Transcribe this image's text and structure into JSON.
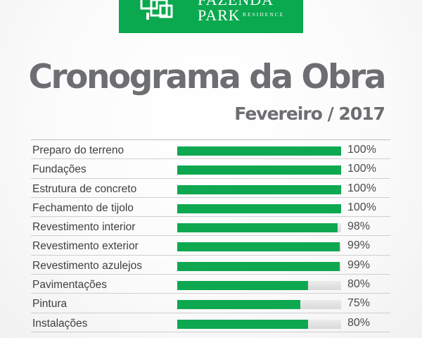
{
  "logo": {
    "line1": "FAZENDA",
    "line2": "PARK",
    "sub": "RESIDENCE",
    "color": "#0aa84f"
  },
  "title": "Cronograma da Obra",
  "subtitle": "Fevereiro / 2017",
  "colors": {
    "bar_fill": "#0ea851",
    "bar_track": "#e2e2e2",
    "title": "#6d6e71"
  },
  "tasks": [
    {
      "label": "Preparo do terreno",
      "percent_text": "100%",
      "progress": 100
    },
    {
      "label": "Fundações",
      "percent_text": "100%",
      "progress": 100
    },
    {
      "label": "Estrutura de concreto",
      "percent_text": "100%",
      "progress": 100
    },
    {
      "label": "Fechamento de tijolo",
      "percent_text": "100%",
      "progress": 100
    },
    {
      "label": "Revestimento interior",
      "percent_text": "98%",
      "progress": 98
    },
    {
      "label": "Revestimento exterior",
      "percent_text": "99%",
      "progress": 99
    },
    {
      "label": "Revestimento azulejos",
      "percent_text": "99%",
      "progress": 99
    },
    {
      "label": "Pavimentações",
      "percent_text": "80%",
      "progress": 80
    },
    {
      "label": "Pintura",
      "percent_text": "75%",
      "progress": 75
    },
    {
      "label": "Instalações",
      "percent_text": "80%",
      "progress": 80
    }
  ]
}
